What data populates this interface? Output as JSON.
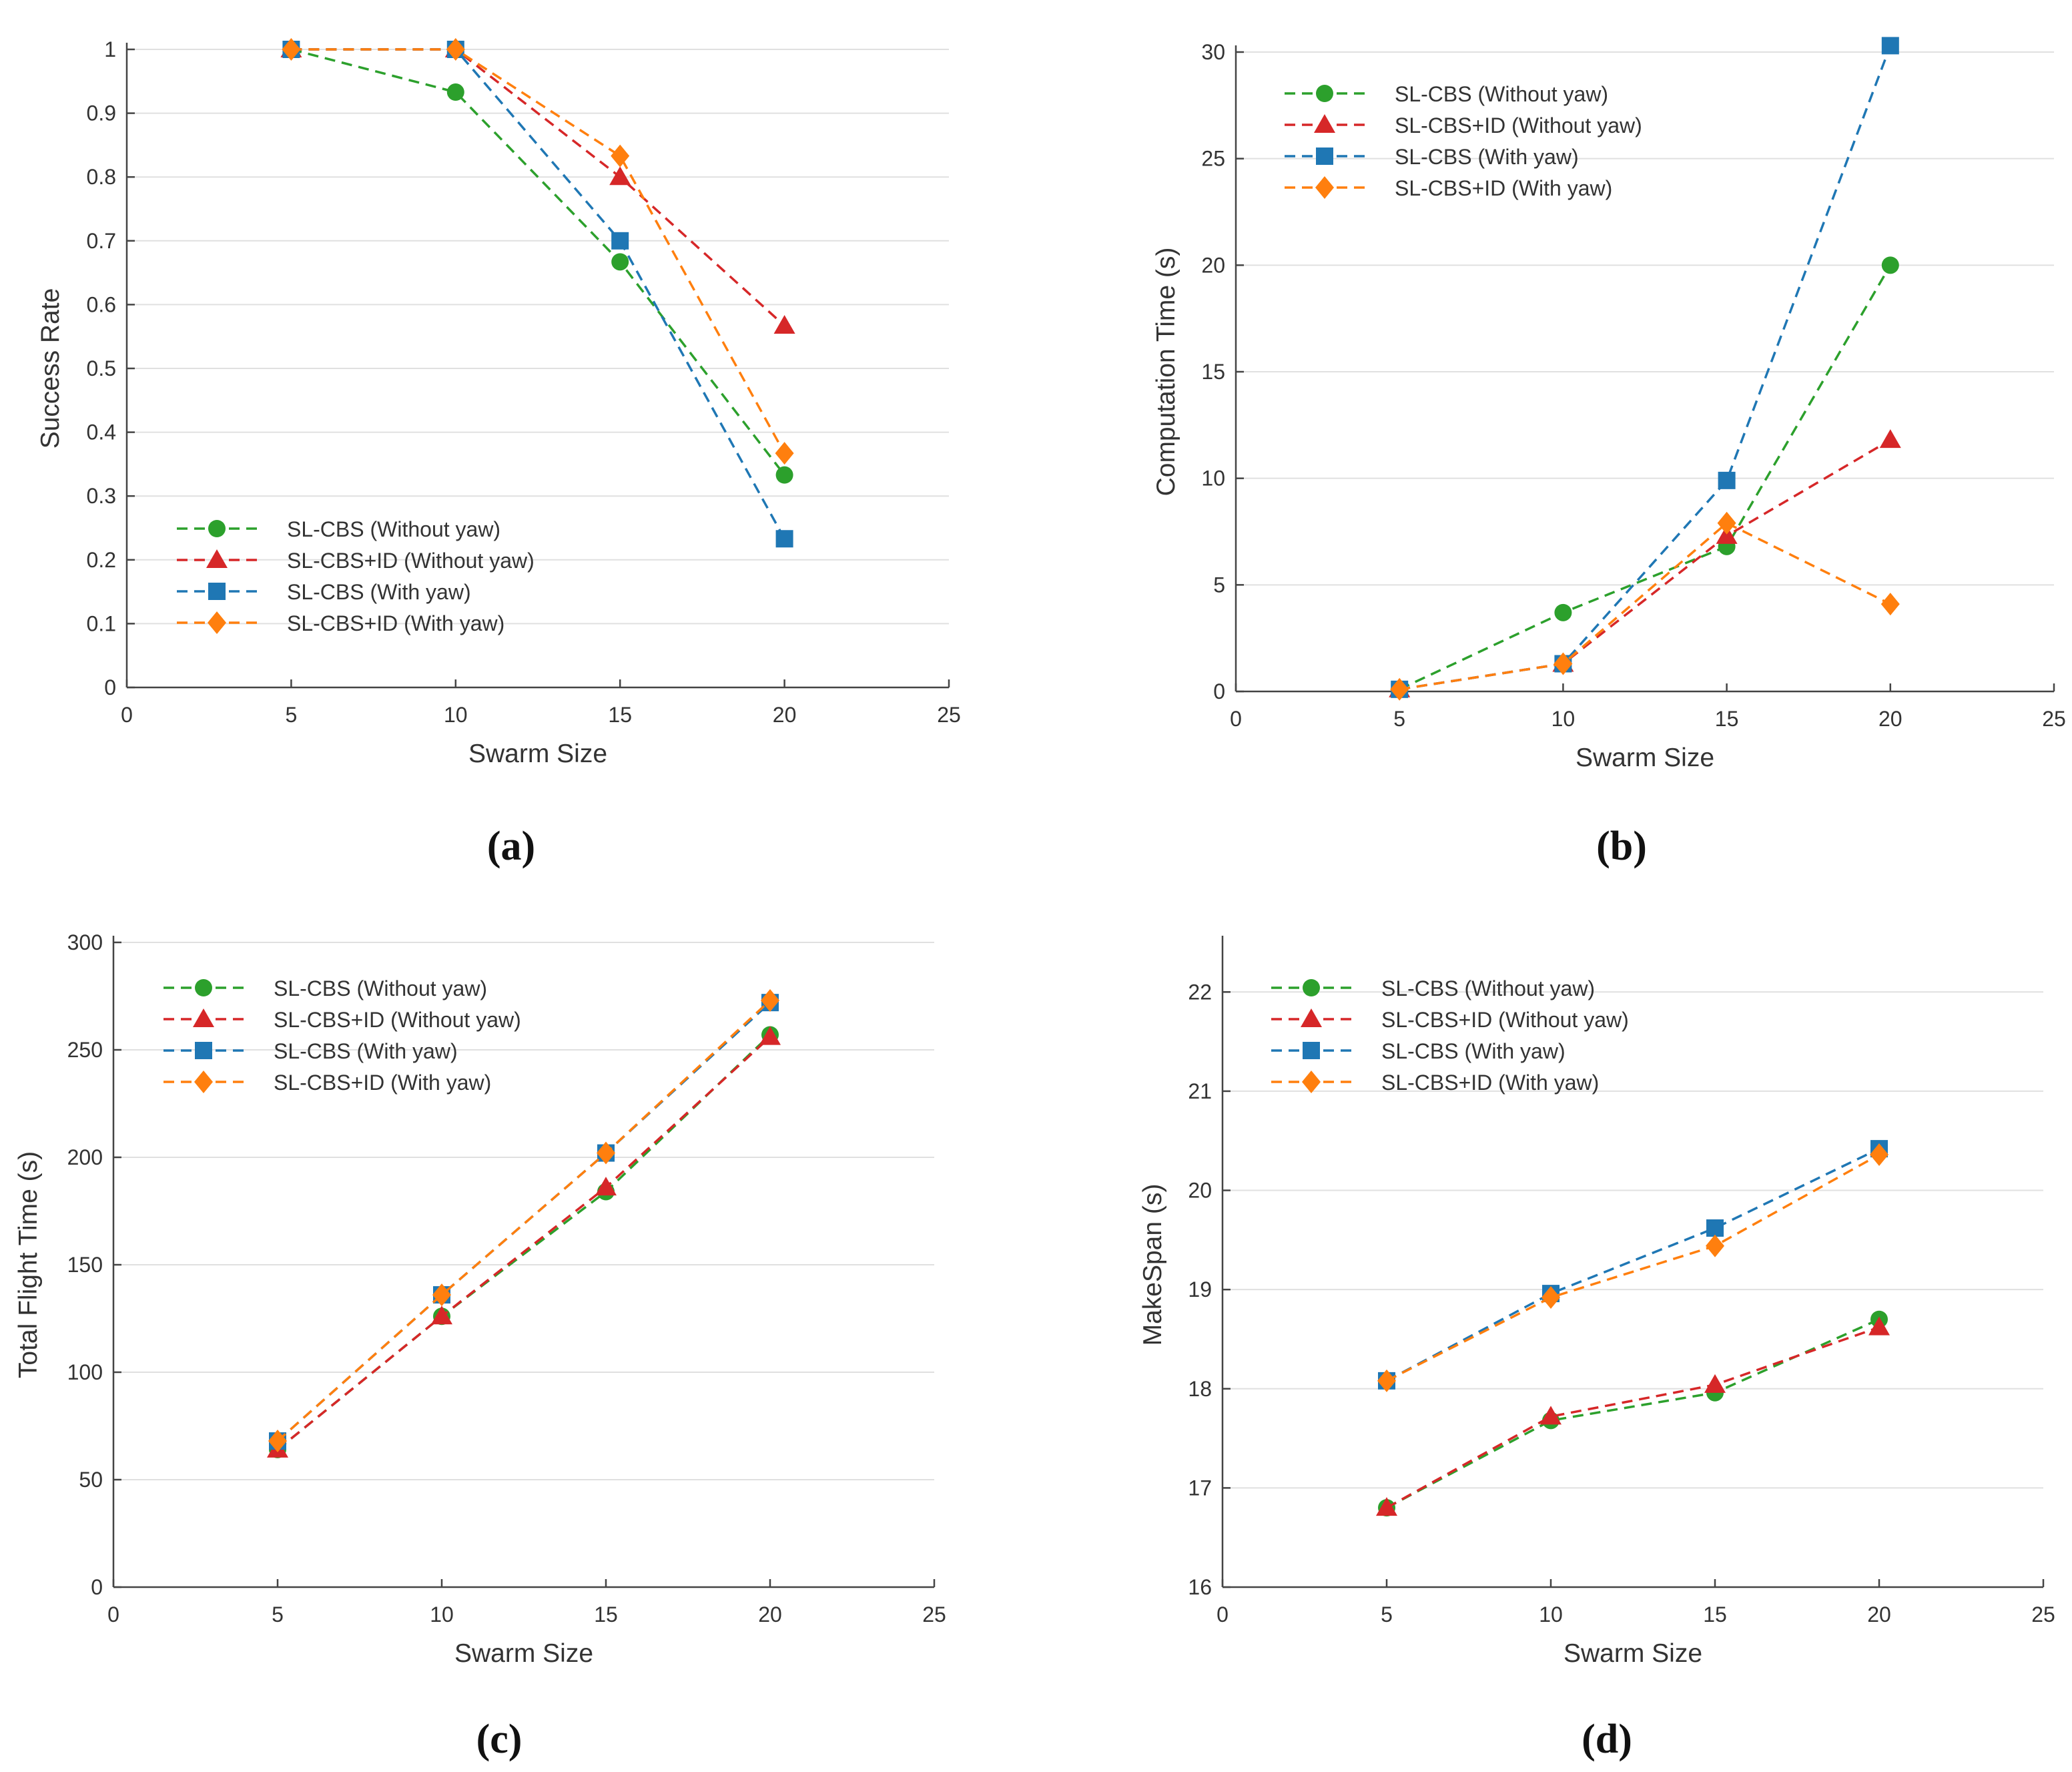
{
  "colors": {
    "green": "#2ca02c",
    "red": "#d62728",
    "blue": "#1f77b4",
    "orange": "#ff7f0e",
    "grid": "#e0e0e0",
    "axis": "#444444",
    "text": "#333333"
  },
  "chart_data": [
    {
      "panel_label": "(a)",
      "type": "line",
      "xlabel": "Swarm Size",
      "ylabel": "Success Rate",
      "xlim": [
        0,
        25
      ],
      "ylim": [
        0,
        1
      ],
      "xticks": [
        0,
        5,
        10,
        15,
        20,
        25
      ],
      "xtick_labels": [
        "0",
        "5",
        "10",
        "15",
        "20",
        "25"
      ],
      "yticks": [
        0,
        0.1,
        0.2,
        0.3,
        0.4,
        0.5,
        0.6,
        0.7,
        0.8,
        0.9,
        1
      ],
      "ytick_labels": [
        "0",
        "0.1",
        "0.2",
        "0.3",
        "0.4",
        "0.5",
        "0.6",
        "0.7",
        "0.8",
        "0.9",
        "1"
      ],
      "legend_position": "lower-left",
      "x": [
        5,
        10,
        15,
        20
      ],
      "series": [
        {
          "name": "SL-CBS (Without yaw)",
          "color": "green",
          "marker": "circle",
          "values": [
            1,
            0.933,
            0.667,
            0.333
          ]
        },
        {
          "name": "SL-CBS+ID (Without yaw)",
          "color": "red",
          "marker": "triangle",
          "values": [
            1,
            1,
            0.8,
            0.567
          ]
        },
        {
          "name": "SL-CBS (With yaw)",
          "color": "blue",
          "marker": "square",
          "values": [
            1,
            1,
            0.7,
            0.233
          ]
        },
        {
          "name": "SL-CBS+ID (With yaw)",
          "color": "orange",
          "marker": "diamond",
          "values": [
            1,
            1,
            0.833,
            0.367
          ]
        }
      ]
    },
    {
      "panel_label": "(b)",
      "type": "line",
      "xlabel": "Swarm Size",
      "ylabel": "Computation Time (s)",
      "xlim": [
        0,
        25
      ],
      "ylim": [
        0,
        30
      ],
      "xticks": [
        0,
        5,
        10,
        15,
        20,
        25
      ],
      "xtick_labels": [
        "0",
        "5",
        "10",
        "15",
        "20",
        "25"
      ],
      "yticks": [
        0,
        5,
        10,
        15,
        20,
        25,
        30
      ],
      "ytick_labels": [
        "0",
        "5",
        "10",
        "15",
        "20",
        "25",
        "30"
      ],
      "legend_position": "top-left",
      "x": [
        5,
        10,
        15,
        20
      ],
      "series": [
        {
          "name": "SL-CBS (Without yaw)",
          "color": "green",
          "marker": "circle",
          "values": [
            0.1,
            3.7,
            6.8,
            20
          ]
        },
        {
          "name": "SL-CBS+ID (Without yaw)",
          "color": "red",
          "marker": "triangle",
          "values": [
            0.1,
            1.3,
            7.3,
            11.8
          ]
        },
        {
          "name": "SL-CBS (With yaw)",
          "color": "blue",
          "marker": "square",
          "values": [
            0.1,
            1.3,
            9.9,
            30.3
          ]
        },
        {
          "name": "SL-CBS+ID (With yaw)",
          "color": "orange",
          "marker": "diamond",
          "values": [
            0.1,
            1.3,
            7.9,
            4.1
          ]
        }
      ]
    },
    {
      "panel_label": "(c)",
      "type": "line",
      "xlabel": "Swarm Size",
      "ylabel": "Total Flight Time (s)",
      "xlim": [
        0,
        25
      ],
      "ylim": [
        0,
        300
      ],
      "xticks": [
        0,
        5,
        10,
        15,
        20,
        25
      ],
      "xtick_labels": [
        "0",
        "5",
        "10",
        "15",
        "20",
        "25"
      ],
      "yticks": [
        0,
        50,
        100,
        150,
        200,
        250,
        300
      ],
      "ytick_labels": [
        "0",
        "50",
        "100",
        "150",
        "200",
        "250",
        "300"
      ],
      "legend_position": "top-left",
      "x": [
        5,
        10,
        15,
        20
      ],
      "series": [
        {
          "name": "SL-CBS (Without yaw)",
          "color": "green",
          "marker": "circle",
          "values": [
            64,
            126,
            184,
            257
          ]
        },
        {
          "name": "SL-CBS+ID (Without yaw)",
          "color": "red",
          "marker": "triangle",
          "values": [
            64,
            126,
            186,
            256
          ]
        },
        {
          "name": "SL-CBS (With yaw)",
          "color": "blue",
          "marker": "square",
          "values": [
            68,
            136,
            202,
            272
          ]
        },
        {
          "name": "SL-CBS+ID (With yaw)",
          "color": "orange",
          "marker": "diamond",
          "values": [
            68,
            136,
            202,
            273
          ]
        }
      ]
    },
    {
      "panel_label": "(d)",
      "type": "line",
      "xlabel": "Swarm Size",
      "ylabel": "MakeSpan (s)",
      "xlim": [
        0,
        25
      ],
      "ylim": [
        16,
        22.5
      ],
      "xticks": [
        0,
        5,
        10,
        15,
        20,
        25
      ],
      "xtick_labels": [
        "0",
        "5",
        "10",
        "15",
        "20",
        "25"
      ],
      "yticks": [
        16,
        17,
        18,
        19,
        20,
        21,
        22
      ],
      "ytick_labels": [
        "16",
        "17",
        "18",
        "19",
        "20",
        "21",
        "22"
      ],
      "legend_position": "top-left",
      "x": [
        5,
        10,
        15,
        20
      ],
      "series": [
        {
          "name": "SL-CBS (Without yaw)",
          "color": "green",
          "marker": "circle",
          "values": [
            16.8,
            17.68,
            17.96,
            18.7
          ]
        },
        {
          "name": "SL-CBS+ID (Without yaw)",
          "color": "red",
          "marker": "triangle",
          "values": [
            16.8,
            17.72,
            18.04,
            18.62
          ]
        },
        {
          "name": "SL-CBS (With yaw)",
          "color": "blue",
          "marker": "square",
          "values": [
            18.08,
            18.96,
            19.62,
            20.42
          ]
        },
        {
          "name": "SL-CBS+ID (With yaw)",
          "color": "orange",
          "marker": "diamond",
          "values": [
            18.08,
            18.92,
            19.44,
            20.36
          ]
        }
      ]
    }
  ]
}
